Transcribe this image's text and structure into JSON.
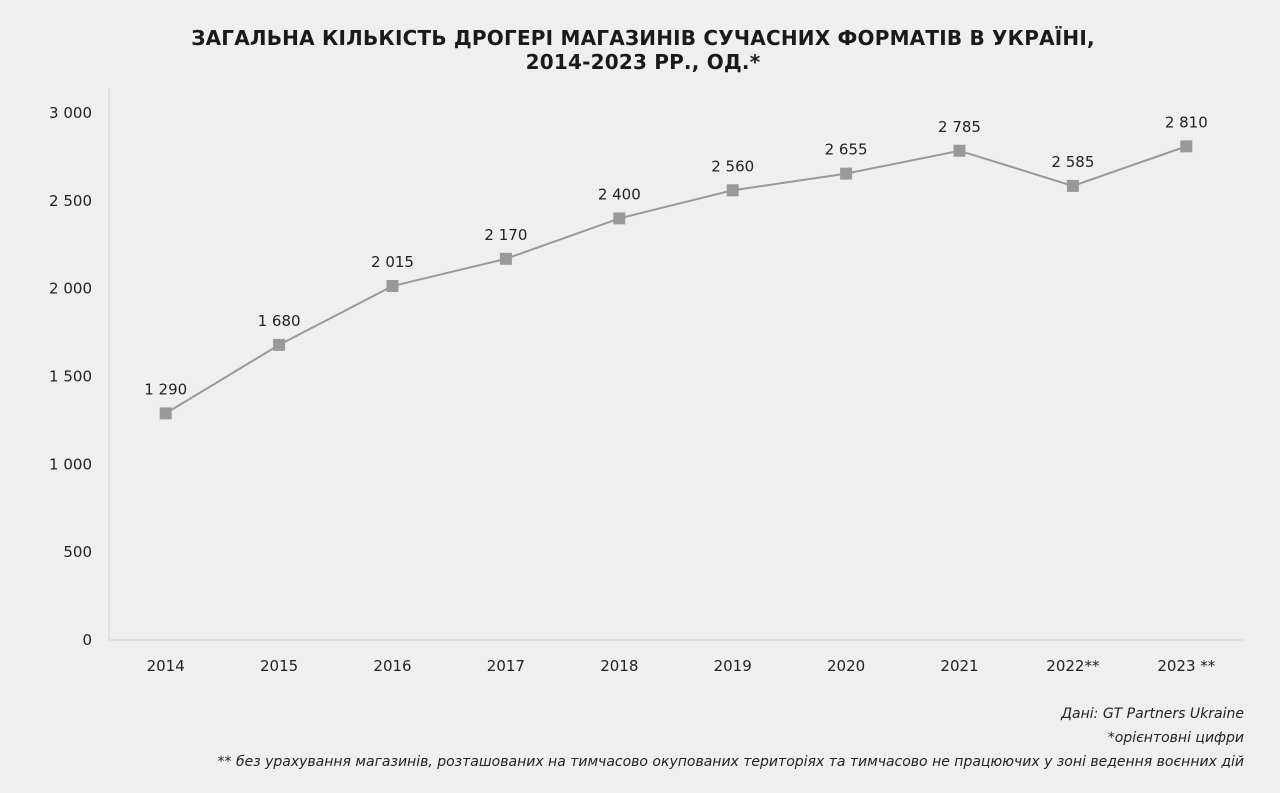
{
  "chart_data": {
    "type": "line",
    "title_lines": [
      "ЗАГАЛЬНА КІЛЬКІСТЬ ДРОГЕРІ МАГАЗИНІВ СУЧАСНИХ ФОРМАТІВ В УКРАЇНІ,",
      "2014-2023 РР., ОД.*"
    ],
    "categories": [
      "2014",
      "2015",
      "2016",
      "2017",
      "2018",
      "2019",
      "2020",
      "2021",
      "2022**",
      "2023 **"
    ],
    "series": [
      {
        "values": [
          1290,
          1680,
          2015,
          2170,
          2400,
          2560,
          2655,
          2785,
          2585,
          2810
        ],
        "labels": [
          "1 290",
          "1 680",
          "2 015",
          "2 170",
          "2 400",
          "2 560",
          "2 655",
          "2 785",
          "2 585",
          "2 810"
        ],
        "color": "#999999"
      }
    ],
    "yticks": [
      0,
      500,
      1000,
      1500,
      2000,
      2500,
      3000
    ],
    "ytick_labels": [
      "0",
      "500",
      "1 000",
      "1 500",
      "2 000",
      "2 500",
      "3 000"
    ],
    "ylim": [
      0,
      3000
    ],
    "grid": false,
    "legend": "none"
  },
  "notes": {
    "source": "Дані: GT Partners Ukraine",
    "footnote1": "*орієнтовні цифри",
    "footnote2": "** без урахування магазинів, розташованих на тимчасово окупованих територіях та тимчасово не працюючих у зоні ведення воєнних дій"
  },
  "colors": {
    "background": "#efefef",
    "line": "#999999",
    "marker": "#999999",
    "axis": "#d0d0d0"
  }
}
